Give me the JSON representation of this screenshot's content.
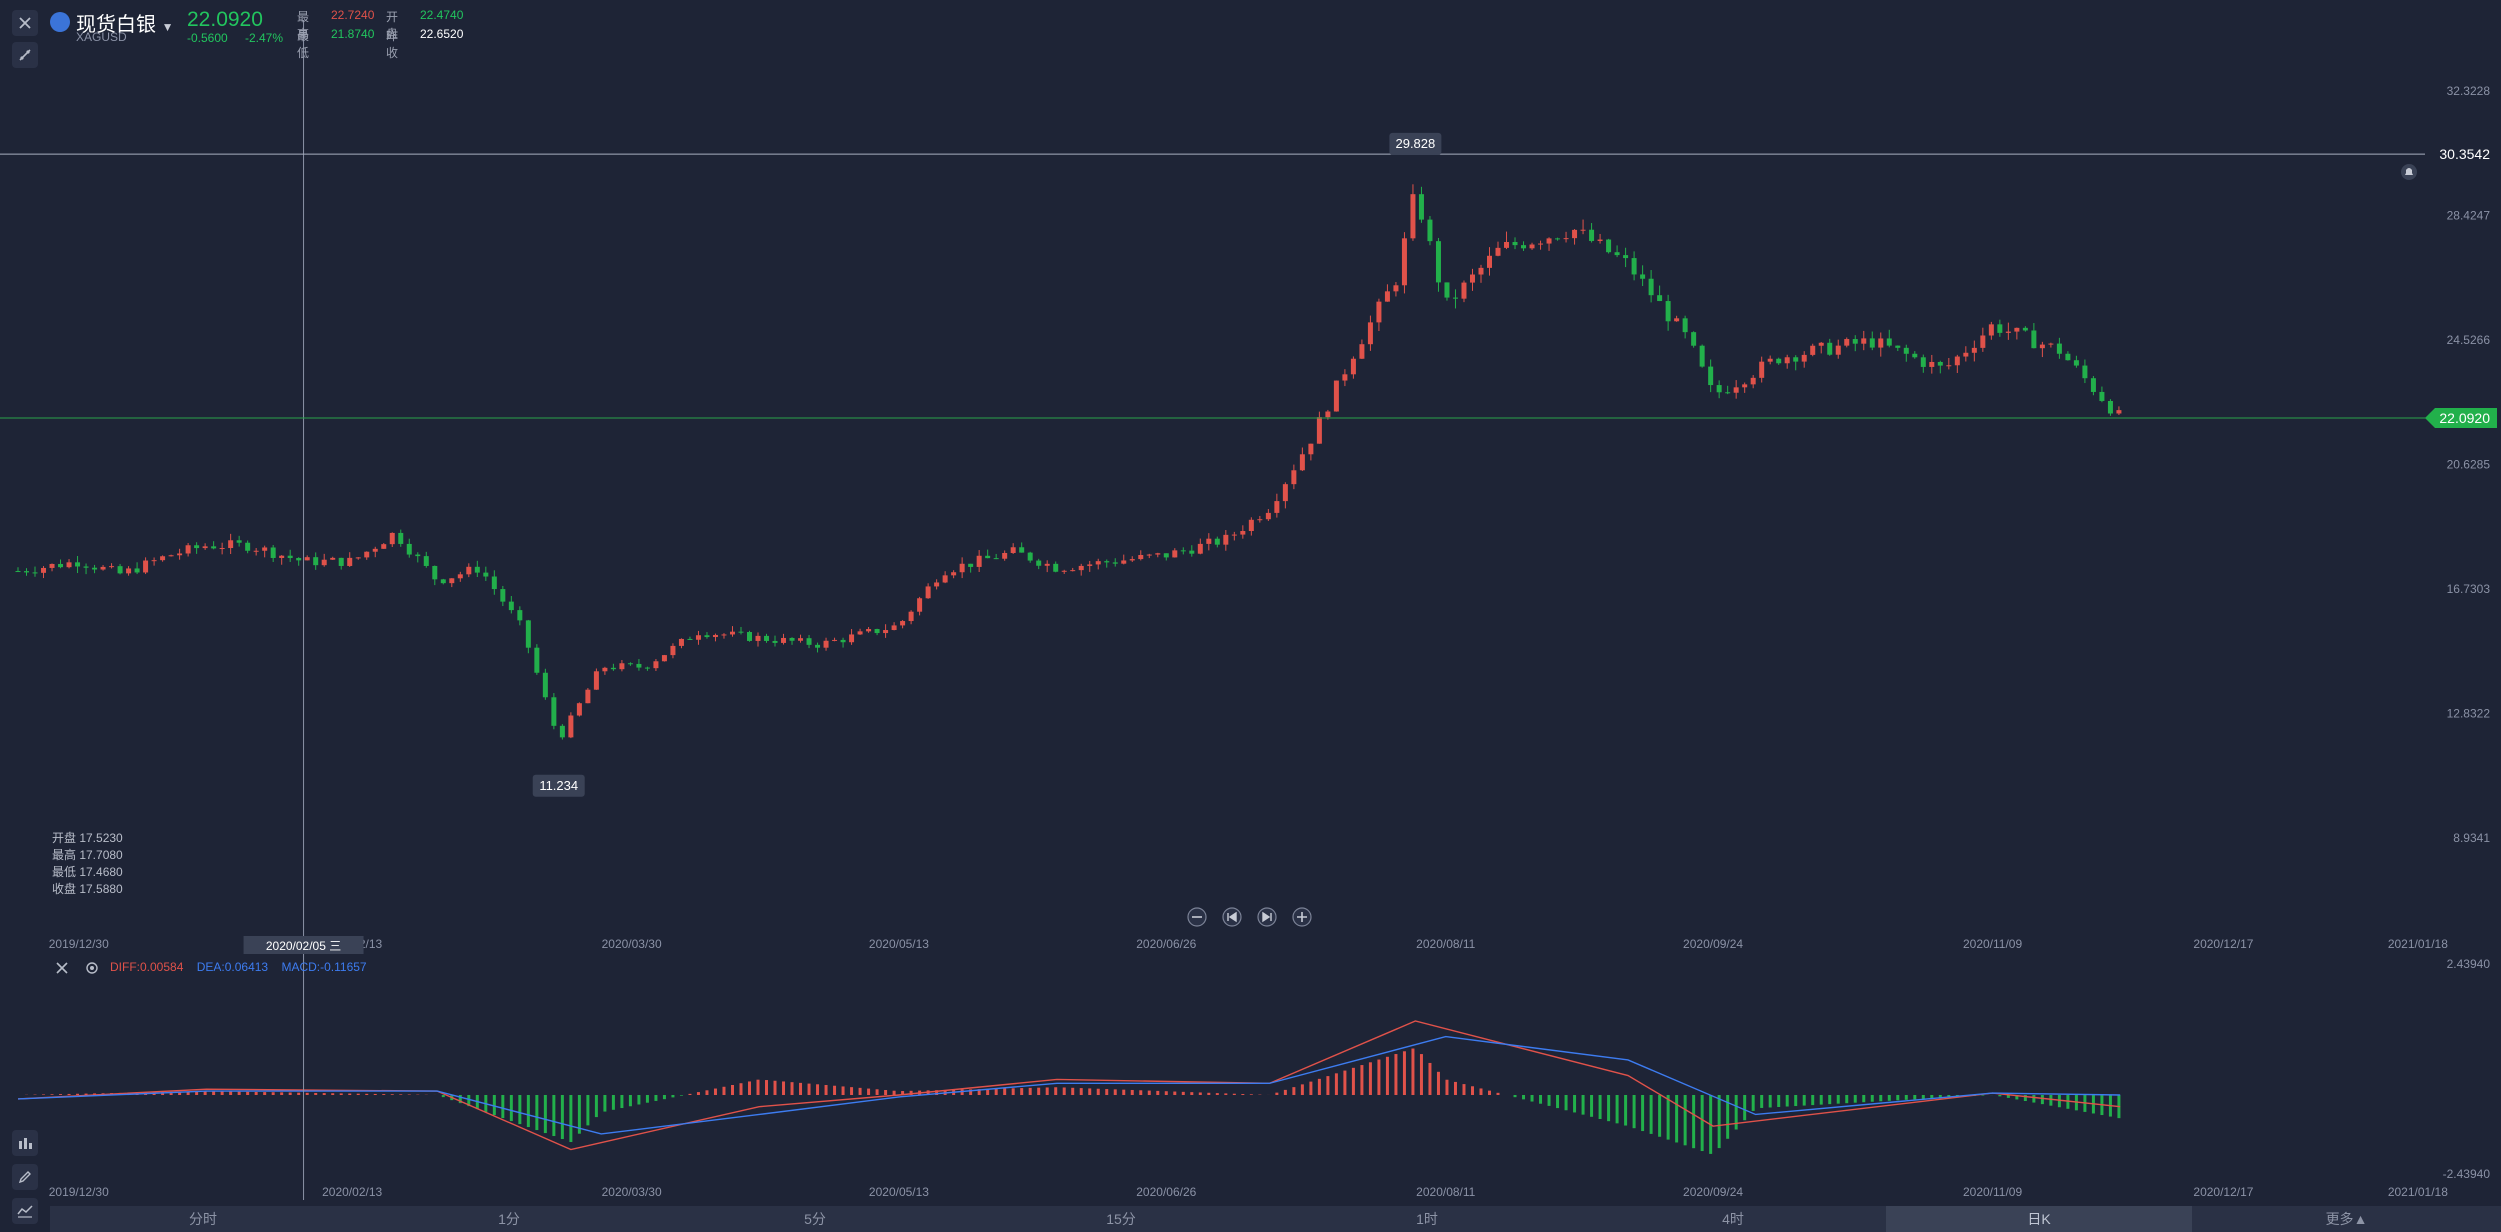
{
  "header": {
    "symbol_name": "现货白银",
    "symbol_code": "XAGUSD",
    "last_price": "22.0920",
    "change": "-0.5600",
    "change_pct": "-2.47%",
    "high_label": "最高",
    "high_value": "22.7240",
    "open_label": "开盘",
    "open_value": "22.4740",
    "low_label": "最低",
    "low_value": "21.8740",
    "prev_close_label": "昨收",
    "prev_close_value": "22.6520"
  },
  "ohlc_panel": {
    "open": "开盘 17.5230",
    "high": "最高 17.7080",
    "low": "最低 17.4680",
    "close": "收盘 17.5880"
  },
  "crosshair": {
    "date_label": "2020/02/05 三",
    "price_label": "30.3542"
  },
  "annotations": {
    "max_label": "29.828",
    "min_label": "11.234",
    "current_price_tag": "22.0920"
  },
  "macd": {
    "diff_label": "DIFF:0.00584",
    "dea_label": "DEA:0.06413",
    "macd_label": "MACD:-0.11657",
    "axis_top": "2.43940",
    "axis_bottom": "-2.43940"
  },
  "tabs": [
    {
      "label": "分时",
      "active": false
    },
    {
      "label": "1分",
      "active": false
    },
    {
      "label": "5分",
      "active": false
    },
    {
      "label": "15分",
      "active": false
    },
    {
      "label": "1时",
      "active": false
    },
    {
      "label": "4时",
      "active": false
    },
    {
      "label": "日K",
      "active": true
    },
    {
      "label": "更多",
      "active": false
    }
  ],
  "colors": {
    "background": "#1e2436",
    "up": "#e0524a",
    "down": "#22b04b",
    "diff_line": "#e0524a",
    "dea_line": "#3d7cf0",
    "accent_green": "#22c55e"
  },
  "icons": [
    "close-icon",
    "drawing-tool-icon",
    "chevron-down-icon",
    "zoom-out-icon",
    "skip-start-icon",
    "skip-end-icon",
    "zoom-in-icon",
    "settings-icon",
    "bell-icon",
    "indicator-icon",
    "pen-icon",
    "chart-type-icon"
  ],
  "chart_data": {
    "type": "candlestick",
    "title": "",
    "xlabel": "",
    "ylabel": "",
    "ylim": [
      7.0,
      33.3
    ],
    "y_ticks": [
      "32.3228",
      "28.4247",
      "24.5266",
      "20.6285",
      "16.7303",
      "12.8322",
      "8.9341"
    ],
    "x_ticks": [
      "2019/12/30",
      "2020/02/13",
      "2020/03/30",
      "2020/05/13",
      "2020/06/26",
      "2020/08/11",
      "2020/09/24",
      "2020/11/09",
      "2020/12/17",
      "2021/01/18"
    ],
    "x_range": [
      "2019/12/20",
      "2021/01/20"
    ],
    "ohlc_hint": "approximate daily closes",
    "series": [
      {
        "x": "2019/12/20",
        "close": 17.3
      },
      {
        "x": "2019/12/30",
        "close": 17.6
      },
      {
        "x": "2020/01/06",
        "close": 17.2
      },
      {
        "x": "2020/01/14",
        "close": 17.8
      },
      {
        "x": "2020/01/20",
        "close": 18.1
      },
      {
        "x": "2020/01/27",
        "close": 18.1
      },
      {
        "x": "2020/02/05",
        "close": 17.6
      },
      {
        "x": "2020/02/13",
        "close": 17.6
      },
      {
        "x": "2020/02/20",
        "close": 18.5
      },
      {
        "x": "2020/02/27",
        "close": 17.0
      },
      {
        "x": "2020/03/05",
        "close": 17.4
      },
      {
        "x": "2020/03/12",
        "close": 15.5
      },
      {
        "x": "2020/03/18",
        "close": 12.0
      },
      {
        "x": "2020/03/25",
        "close": 14.3
      },
      {
        "x": "2020/04/01",
        "close": 14.3
      },
      {
        "x": "2020/04/10",
        "close": 15.4
      },
      {
        "x": "2020/04/20",
        "close": 15.2
      },
      {
        "x": "2020/04/30",
        "close": 15.0
      },
      {
        "x": "2020/05/13",
        "close": 15.6
      },
      {
        "x": "2020/05/20",
        "close": 17.3
      },
      {
        "x": "2020/06/01",
        "close": 17.9
      },
      {
        "x": "2020/06/08",
        "close": 17.4
      },
      {
        "x": "2020/06/26",
        "close": 17.8
      },
      {
        "x": "2020/07/06",
        "close": 18.3
      },
      {
        "x": "2020/07/13",
        "close": 19.3
      },
      {
        "x": "2020/07/20",
        "close": 21.5
      },
      {
        "x": "2020/07/27",
        "close": 24.2
      },
      {
        "x": "2020/08/03",
        "close": 26.5
      },
      {
        "x": "2020/08/06",
        "close": 29.2
      },
      {
        "x": "2020/08/11",
        "close": 25.6
      },
      {
        "x": "2020/08/20",
        "close": 27.4
      },
      {
        "x": "2020/09/01",
        "close": 28.0
      },
      {
        "x": "2020/09/10",
        "close": 26.9
      },
      {
        "x": "2020/09/20",
        "close": 24.5
      },
      {
        "x": "2020/09/24",
        "close": 22.8
      },
      {
        "x": "2020/10/05",
        "close": 24.0
      },
      {
        "x": "2020/10/20",
        "close": 24.5
      },
      {
        "x": "2020/11/01",
        "close": 23.6
      },
      {
        "x": "2020/11/09",
        "close": 25.0
      },
      {
        "x": "2020/11/20",
        "close": 24.2
      },
      {
        "x": "2020/11/30",
        "close": 22.1
      }
    ],
    "macd_series": {
      "ylim": [
        -2.4394,
        2.4394
      ],
      "diff": [
        {
          "x": "2019/12/20",
          "y": -0.1
        },
        {
          "x": "2020/01/20",
          "y": 0.15
        },
        {
          "x": "2020/02/27",
          "y": 0.1
        },
        {
          "x": "2020/03/20",
          "y": -1.4
        },
        {
          "x": "2020/04/20",
          "y": -0.3
        },
        {
          "x": "2020/05/13",
          "y": 0.0
        },
        {
          "x": "2020/06/08",
          "y": 0.4
        },
        {
          "x": "2020/07/13",
          "y": 0.3
        },
        {
          "x": "2020/08/06",
          "y": 1.9
        },
        {
          "x": "2020/09/10",
          "y": 0.5
        },
        {
          "x": "2020/09/24",
          "y": -0.8
        },
        {
          "x": "2020/11/09",
          "y": 0.05
        },
        {
          "x": "2020/11/30",
          "y": -0.3
        }
      ],
      "dea": [
        {
          "x": "2019/12/20",
          "y": -0.1
        },
        {
          "x": "2020/01/20",
          "y": 0.1
        },
        {
          "x": "2020/02/27",
          "y": 0.1
        },
        {
          "x": "2020/03/25",
          "y": -1.0
        },
        {
          "x": "2020/04/20",
          "y": -0.5
        },
        {
          "x": "2020/05/13",
          "y": -0.05
        },
        {
          "x": "2020/06/08",
          "y": 0.3
        },
        {
          "x": "2020/07/13",
          "y": 0.3
        },
        {
          "x": "2020/08/11",
          "y": 1.5
        },
        {
          "x": "2020/09/10",
          "y": 0.9
        },
        {
          "x": "2020/10/01",
          "y": -0.5
        },
        {
          "x": "2020/11/09",
          "y": 0.05
        },
        {
          "x": "2020/11/30",
          "y": 0.0
        }
      ]
    }
  }
}
